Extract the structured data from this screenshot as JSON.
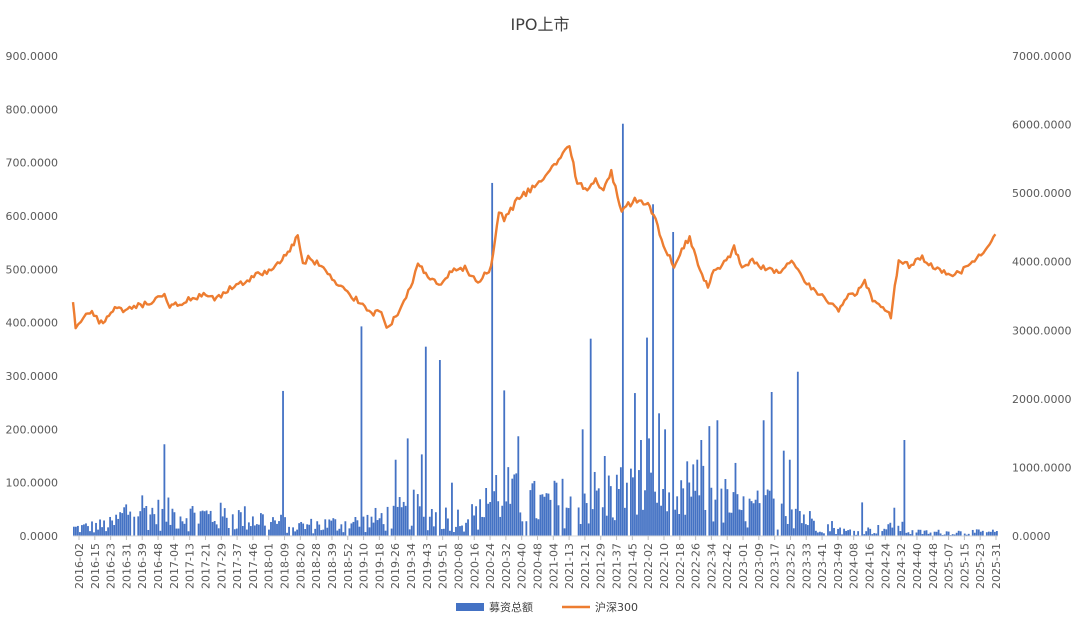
{
  "chart_data": {
    "type": "bar+line",
    "title": "IPO上市",
    "legend": [
      "募资总额",
      "沪深300"
    ],
    "legend_position": "bottom",
    "grid": false,
    "colors": {
      "bars": "#4472C4",
      "line": "#ED7D31"
    },
    "left_axis": {
      "ylim": [
        0,
        900
      ],
      "ticks": [
        "0.0000",
        "100.0000",
        "200.0000",
        "300.0000",
        "400.0000",
        "500.0000",
        "600.0000",
        "700.0000",
        "800.0000",
        "900.0000"
      ]
    },
    "right_axis": {
      "ylim": [
        0,
        7000
      ],
      "ticks": [
        "0.0000",
        "1000.0000",
        "2000.0000",
        "3000.0000",
        "4000.0000",
        "5000.0000",
        "6000.0000",
        "7000.0000"
      ]
    },
    "x_tick_labels": [
      "2016-02",
      "2016-15",
      "2016-23",
      "2016-31",
      "2016-39",
      "2016-48",
      "2017-04",
      "2017-13",
      "2017-21",
      "2017-29",
      "2017-37",
      "2017-46",
      "2018-01",
      "2018-09",
      "2018-20",
      "2018-28",
      "2018-39",
      "2018-52",
      "2019-10",
      "2019-18",
      "2019-26",
      "2019-34",
      "2019-43",
      "2019-51",
      "2020-08",
      "2020-16",
      "2020-24",
      "2020-32",
      "2020-40",
      "2020-48",
      "2021-04",
      "2021-13",
      "2021-21",
      "2021-29",
      "2021-37",
      "2021-45",
      "2022-02",
      "2022-10",
      "2022-18",
      "2022-26",
      "2022-34",
      "2022-42",
      "2023-01",
      "2023-09",
      "2023-17",
      "2023-25",
      "2023-33",
      "2023-41",
      "2023-49",
      "2024-08",
      "2024-16",
      "2024-24",
      "2024-32",
      "2024-40",
      "2024-48",
      "2025-07",
      "2025-15",
      "2025-23",
      "2025-31"
    ],
    "series": [
      {
        "name": "募资总额",
        "axis": "left",
        "type": "bar",
        "spikes": [
          [
            3.5,
            172
          ],
          [
            8.0,
            272
          ],
          [
            11.0,
            393
          ],
          [
            12.3,
            143
          ],
          [
            12.8,
            183
          ],
          [
            13.3,
            153
          ],
          [
            13.5,
            355
          ],
          [
            14.0,
            330
          ],
          [
            14.5,
            100
          ],
          [
            15.8,
            90
          ],
          [
            16.0,
            662
          ],
          [
            16.5,
            273
          ],
          [
            17.0,
            187
          ],
          [
            18.5,
            100
          ],
          [
            19.5,
            200
          ],
          [
            19.8,
            370
          ],
          [
            20.3,
            150
          ],
          [
            21.0,
            773
          ],
          [
            21.5,
            268
          ],
          [
            21.7,
            180
          ],
          [
            21.9,
            372
          ],
          [
            22.0,
            183
          ],
          [
            22.2,
            622
          ],
          [
            22.4,
            230
          ],
          [
            22.6,
            200
          ],
          [
            22.9,
            570
          ],
          [
            23.5,
            140
          ],
          [
            24.0,
            180
          ],
          [
            24.3,
            206
          ],
          [
            24.6,
            217
          ],
          [
            25.3,
            137
          ],
          [
            26.4,
            217
          ],
          [
            26.7,
            270
          ],
          [
            27.2,
            160
          ],
          [
            27.4,
            143
          ],
          [
            27.7,
            308
          ],
          [
            30.2,
            63
          ],
          [
            31.4,
            53
          ],
          [
            31.8,
            180
          ]
        ],
        "level_profile": [
          [
            0,
            20
          ],
          [
            1.5,
            30
          ],
          [
            2.3,
            85
          ],
          [
            3.0,
            60
          ],
          [
            4.5,
            55
          ],
          [
            6.0,
            50
          ],
          [
            7.2,
            45
          ],
          [
            8.5,
            25
          ],
          [
            9.5,
            30
          ],
          [
            11.0,
            35
          ],
          [
            12.0,
            50
          ],
          [
            13.0,
            70
          ],
          [
            14.5,
            45
          ],
          [
            15.5,
            55
          ],
          [
            16.2,
            120
          ],
          [
            17.0,
            95
          ],
          [
            18.0,
            80
          ],
          [
            19.0,
            95
          ],
          [
            20.0,
            105
          ],
          [
            21.0,
            115
          ],
          [
            22.0,
            105
          ],
          [
            23.0,
            55
          ],
          [
            23.5,
            120
          ],
          [
            24.5,
            110
          ],
          [
            25.5,
            65
          ],
          [
            26.5,
            75
          ],
          [
            27.5,
            85
          ],
          [
            28.0,
            45
          ],
          [
            28.5,
            35
          ],
          [
            29.0,
            25
          ],
          [
            29.5,
            12
          ],
          [
            30.5,
            15
          ],
          [
            31.0,
            20
          ],
          [
            31.7,
            22
          ],
          [
            32.0,
            10
          ]
        ]
      },
      {
        "name": "沪深300",
        "axis": "right",
        "type": "line",
        "points": [
          [
            0,
            3400
          ],
          [
            0.1,
            3000
          ],
          [
            0.3,
            3150
          ],
          [
            0.5,
            3200
          ],
          [
            0.8,
            3250
          ],
          [
            1.0,
            3100
          ],
          [
            1.3,
            3180
          ],
          [
            1.6,
            3300
          ],
          [
            2.0,
            3280
          ],
          [
            2.5,
            3350
          ],
          [
            3.0,
            3400
          ],
          [
            3.5,
            3500
          ],
          [
            3.7,
            3350
          ],
          [
            4.0,
            3380
          ],
          [
            4.5,
            3450
          ],
          [
            5.0,
            3500
          ],
          [
            5.5,
            3450
          ],
          [
            6.0,
            3600
          ],
          [
            6.5,
            3700
          ],
          [
            7.0,
            3800
          ],
          [
            7.5,
            3850
          ],
          [
            8.0,
            4050
          ],
          [
            8.3,
            4150
          ],
          [
            8.6,
            4400
          ],
          [
            8.8,
            3950
          ],
          [
            9.0,
            4050
          ],
          [
            9.5,
            3950
          ],
          [
            10.0,
            3700
          ],
          [
            10.5,
            3550
          ],
          [
            11.0,
            3400
          ],
          [
            11.5,
            3250
          ],
          [
            11.8,
            3300
          ],
          [
            12.0,
            3050
          ],
          [
            12.2,
            3100
          ],
          [
            12.5,
            3300
          ],
          [
            13.0,
            3700
          ],
          [
            13.2,
            4000
          ],
          [
            13.5,
            3800
          ],
          [
            14.0,
            3650
          ],
          [
            14.5,
            3850
          ],
          [
            15.0,
            3900
          ],
          [
            15.5,
            3700
          ],
          [
            16.0,
            3900
          ],
          [
            16.3,
            4750
          ],
          [
            16.5,
            4600
          ],
          [
            17.0,
            4900
          ],
          [
            17.5,
            5050
          ],
          [
            18.0,
            5200
          ],
          [
            18.5,
            5450
          ],
          [
            19.0,
            5700
          ],
          [
            19.3,
            5150
          ],
          [
            19.6,
            5050
          ],
          [
            20.0,
            5200
          ],
          [
            20.3,
            5050
          ],
          [
            20.6,
            5300
          ],
          [
            21.0,
            4750
          ],
          [
            21.5,
            4900
          ],
          [
            22.0,
            4850
          ],
          [
            22.3,
            4600
          ],
          [
            22.6,
            4200
          ],
          [
            23.0,
            3950
          ],
          [
            23.3,
            4200
          ],
          [
            23.6,
            4350
          ],
          [
            24.0,
            3850
          ],
          [
            24.3,
            3650
          ],
          [
            24.6,
            3900
          ],
          [
            25.0,
            4000
          ],
          [
            25.3,
            4200
          ],
          [
            25.6,
            3950
          ],
          [
            26.0,
            4000
          ],
          [
            26.5,
            3900
          ],
          [
            27.0,
            3850
          ],
          [
            27.5,
            4000
          ],
          [
            28.0,
            3700
          ],
          [
            28.5,
            3550
          ],
          [
            29.0,
            3400
          ],
          [
            29.3,
            3300
          ],
          [
            29.6,
            3500
          ],
          [
            30.0,
            3550
          ],
          [
            30.3,
            3700
          ],
          [
            30.6,
            3450
          ],
          [
            31.0,
            3350
          ],
          [
            31.3,
            3200
          ],
          [
            31.6,
            4050
          ],
          [
            32.0,
            3950
          ],
          [
            32.5,
            4050
          ],
          [
            33.0,
            3900
          ],
          [
            33.5,
            3800
          ],
          [
            34.0,
            3850
          ],
          [
            34.5,
            4000
          ],
          [
            35.0,
            4200
          ],
          [
            35.3,
            4400
          ]
        ]
      }
    ]
  }
}
